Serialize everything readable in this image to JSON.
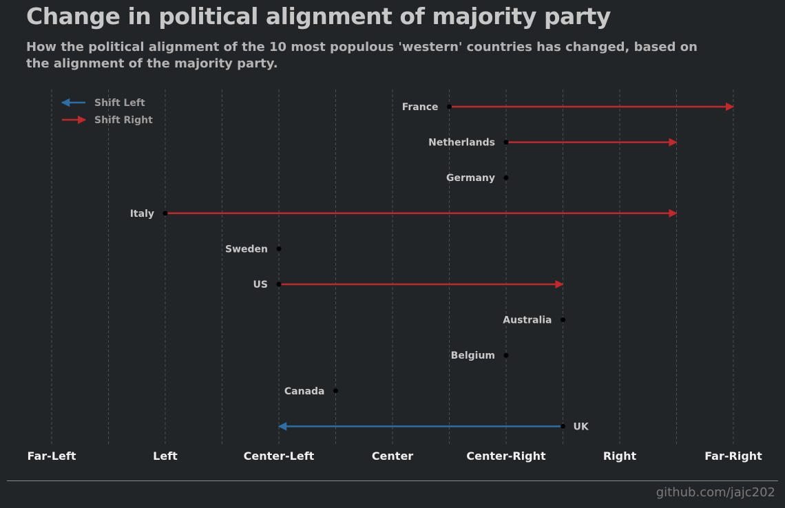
{
  "title": "Change in political alignment of majority party",
  "subtitle": "How the political alignment of the 10 most populous 'western' countries has changed, based on the alignment of the majority party.",
  "source": "github.com/jajc202",
  "colors": {
    "background": "#222528",
    "shift_left": "#2b6fa6",
    "shift_right": "#c0282b",
    "point": "#000000",
    "grid": "#4a4e52"
  },
  "chart_data": {
    "type": "arrow",
    "x_categories": [
      "Far-Left",
      "Left",
      "Center-Left",
      "Center",
      "Center-Right",
      "Right",
      "Far-Right"
    ],
    "xlim": [
      -3,
      3
    ],
    "grid": "vertical dashed",
    "legend_position": "top-left",
    "legend": [
      {
        "name": "Shift Left",
        "color": "#2b6fa6"
      },
      {
        "name": "Shift Right",
        "color": "#c0282b"
      }
    ],
    "rows": [
      {
        "country": "France",
        "from": 0.5,
        "to": 3.0
      },
      {
        "country": "Netherlands",
        "from": 1.0,
        "to": 2.5
      },
      {
        "country": "Germany",
        "from": 1.0,
        "to": 1.0
      },
      {
        "country": "Italy",
        "from": -2.0,
        "to": 2.5
      },
      {
        "country": "Sweden",
        "from": -1.0,
        "to": -1.0
      },
      {
        "country": "US",
        "from": -1.0,
        "to": 1.5
      },
      {
        "country": "Australia",
        "from": 1.5,
        "to": 1.5
      },
      {
        "country": "Belgium",
        "from": 1.0,
        "to": 1.0
      },
      {
        "country": "Canada",
        "from": -0.5,
        "to": -0.5
      },
      {
        "country": "UK",
        "from": 1.5,
        "to": -1.0
      }
    ]
  }
}
